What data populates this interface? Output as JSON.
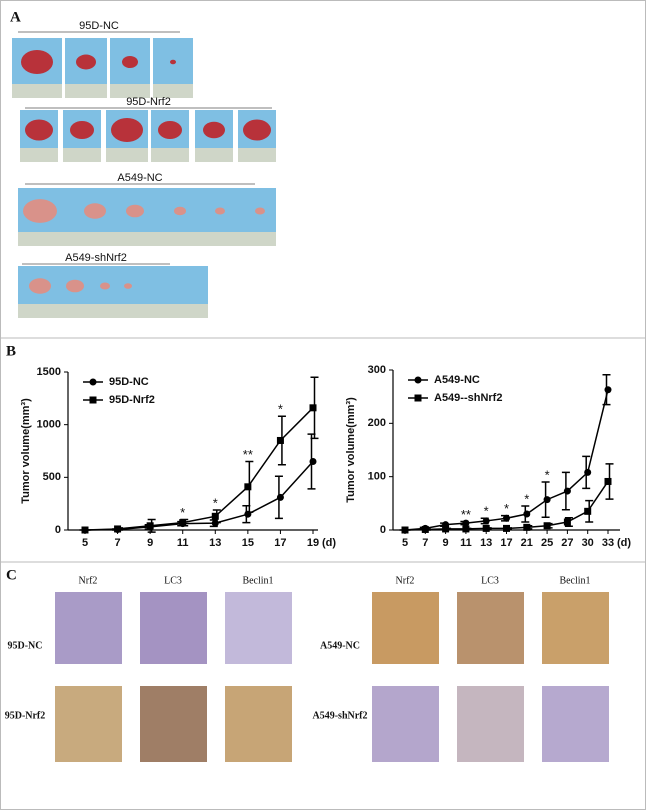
{
  "panels": {
    "A": {
      "label": "A",
      "groups": [
        "95D-NC",
        "95D-Nrf2",
        "A549-NC",
        "A549-shNrf2"
      ]
    },
    "B": {
      "label": "B"
    },
    "C": {
      "label": "C",
      "left": {
        "columns": [
          "Nrf2",
          "LC3",
          "Beclin1"
        ],
        "rows": [
          "95D-NC",
          "95D-Nrf2"
        ]
      },
      "right": {
        "columns": [
          "Nrf2",
          "LC3",
          "Beclin1"
        ],
        "rows": [
          "A549-NC",
          "A549-shNrf2"
        ]
      }
    }
  },
  "chart_data": [
    {
      "type": "line",
      "ylabel": "Tumor volume(mm³)",
      "xunit": "(d)",
      "categories": [
        "5",
        "7",
        "9",
        "11",
        "13",
        "15",
        "17",
        "19"
      ],
      "ylim": [
        0,
        1500
      ],
      "yticks": [
        0,
        500,
        1000,
        1500
      ],
      "legend": "upper left",
      "series": [
        {
          "name": "95D-NC",
          "color": "#000000",
          "marker": "circle",
          "values": [
            0,
            5,
            30,
            60,
            65,
            150,
            310,
            650
          ],
          "errors": [
            0,
            5,
            20,
            20,
            30,
            80,
            200,
            260
          ]
        },
        {
          "name": "95D-Nrf2",
          "color": "#000000",
          "marker": "square",
          "values": [
            0,
            10,
            40,
            70,
            130,
            410,
            850,
            1160
          ],
          "errors": [
            0,
            10,
            60,
            30,
            60,
            240,
            230,
            290
          ]
        }
      ],
      "annotations": [
        {
          "x": "11",
          "text": "*"
        },
        {
          "x": "13",
          "text": "*"
        },
        {
          "x": "15",
          "text": "**"
        },
        {
          "x": "17",
          "text": "*"
        }
      ]
    },
    {
      "type": "line",
      "ylabel": "Tumor volume(mm³)",
      "xunit": "(d)",
      "categories": [
        "5",
        "7",
        "9",
        "11",
        "13",
        "17",
        "21",
        "25",
        "27",
        "30",
        "33"
      ],
      "ylim": [
        0,
        300
      ],
      "yticks": [
        0,
        100,
        200,
        300
      ],
      "legend": "upper left",
      "series": [
        {
          "name": "A549-NC",
          "color": "#000000",
          "marker": "circle",
          "values": [
            0,
            3,
            10,
            13,
            17,
            22,
            30,
            57,
            73,
            108,
            263
          ],
          "errors": [
            0,
            2,
            3,
            3,
            5,
            5,
            15,
            33,
            35,
            30,
            28
          ]
        },
        {
          "name": "A549--shNrf2",
          "color": "#000000",
          "marker": "square",
          "values": [
            0,
            1,
            2,
            2,
            3,
            3,
            5,
            8,
            15,
            35,
            91
          ],
          "errors": [
            0,
            1,
            1,
            1,
            1,
            1,
            3,
            4,
            8,
            20,
            33
          ]
        }
      ],
      "annotations": [
        {
          "x": "11",
          "text": "**"
        },
        {
          "x": "13",
          "text": "*"
        },
        {
          "x": "17",
          "text": "*"
        },
        {
          "x": "21",
          "text": "*"
        },
        {
          "x": "25",
          "text": "*"
        }
      ]
    }
  ]
}
